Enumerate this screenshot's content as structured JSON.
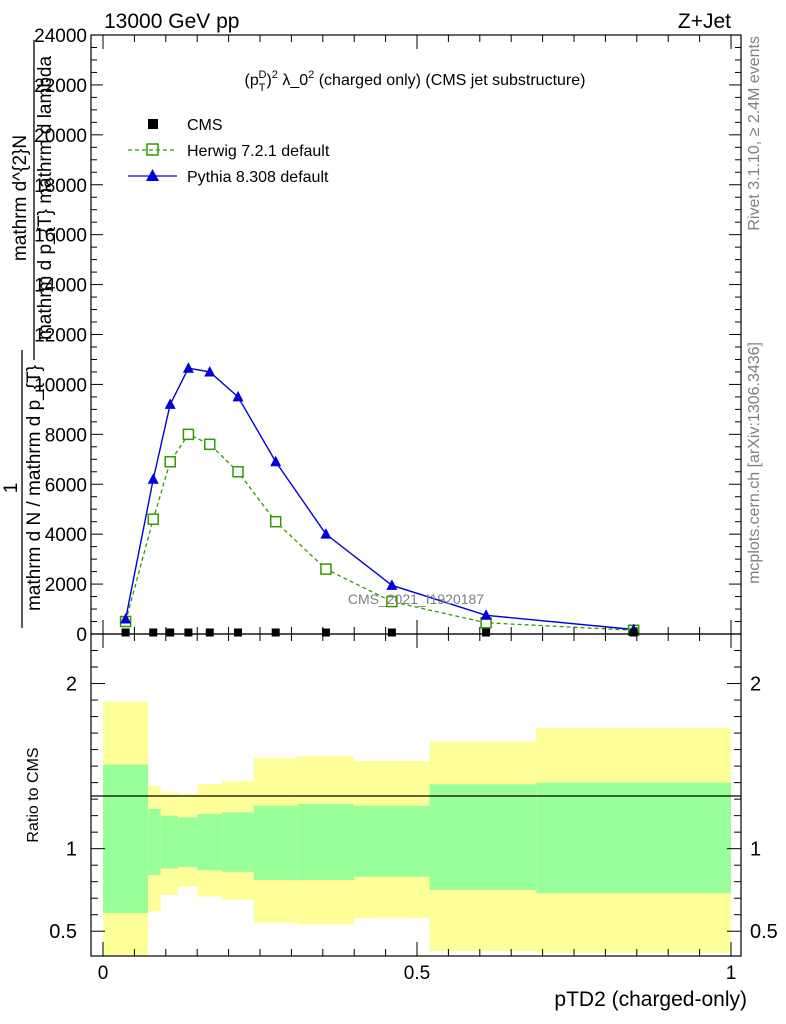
{
  "header": {
    "left": "13000 GeV pp",
    "right": "Z+Jet"
  },
  "side_labels": {
    "rivet": "Rivet 3.1.10, ≥ 2.4M events",
    "mcplots": "mcplots.cern.ch [arXiv:1306.3436]"
  },
  "watermark": "CMS_2021_I1920187",
  "colors": {
    "cms": "#000000",
    "herwig": "#339900",
    "pythia": "#0000dd",
    "band_inner": "#99ff99",
    "band_outer": "#ffff99"
  },
  "chart_data": [
    {
      "type": "line",
      "title_base": "(p",
      "title_sub": "T",
      "title_sup": "D",
      "title_sq": "2",
      "title_mid": " λ_0",
      "title_tail": " (charged only) (CMS jet substructure)",
      "ylabel_lines": [
        "mathrm d^{2}N",
        "mathrm d p_{T} mathrm d lambda",
        "1",
        "mathrm d N / mathrm d p_{T}"
      ],
      "ylim": [
        0,
        24000
      ],
      "yticks": [
        0,
        2000,
        4000,
        6000,
        8000,
        10000,
        12000,
        14000,
        16000,
        18000,
        20000,
        22000,
        24000
      ],
      "ytick_labels": [
        "0",
        "2000",
        "4000",
        "6000",
        "8000",
        "10000",
        "12000",
        "14000",
        "16000",
        "18000",
        "20000",
        "22000",
        "24000"
      ],
      "legend_placement": "top-left",
      "series": [
        {
          "name": "CMS",
          "x": [
            0.036,
            0.08,
            0.107,
            0.136,
            0.17,
            0.215,
            0.275,
            0.355,
            0.46,
            0.61,
            0.845
          ],
          "y": [
            60,
            60,
            60,
            60,
            60,
            60,
            60,
            60,
            60,
            60,
            60
          ]
        },
        {
          "name": "Herwig 7.2.1 default",
          "x": [
            0.036,
            0.08,
            0.107,
            0.136,
            0.17,
            0.215,
            0.275,
            0.355,
            0.46,
            0.61,
            0.845
          ],
          "y": [
            500,
            4600,
            6900,
            8000,
            7600,
            6500,
            4500,
            2600,
            1300,
            450,
            150
          ]
        },
        {
          "name": "Pythia 8.308 default",
          "x": [
            0.036,
            0.08,
            0.107,
            0.136,
            0.17,
            0.215,
            0.275,
            0.355,
            0.46,
            0.61,
            0.845
          ],
          "y": [
            600,
            6200,
            9200,
            10650,
            10500,
            9500,
            6900,
            4000,
            1950,
            750,
            180
          ]
        }
      ]
    },
    {
      "type": "area",
      "ylabel": "Ratio to CMS",
      "xlabel": "pTD2 (charged-only)",
      "xlim": [
        0,
        1
      ],
      "ylim": [
        0.35,
        2.3
      ],
      "xticks": [
        0,
        0.5,
        1
      ],
      "xtick_labels": [
        "0",
        "0.5",
        "1"
      ],
      "yticks": [
        0.5,
        1,
        2
      ],
      "ytick_labels": [
        "0.5",
        "1",
        "2"
      ],
      "bins": [
        {
          "lo": 0.0,
          "hi": 0.072,
          "in_lo": 0.61,
          "in_hi": 1.51,
          "out_lo": 0.35,
          "out_hi": 1.89
        },
        {
          "lo": 0.072,
          "hi": 0.092,
          "in_lo": 0.84,
          "in_hi": 1.24,
          "out_lo": 0.62,
          "out_hi": 1.38
        },
        {
          "lo": 0.092,
          "hi": 0.12,
          "in_lo": 0.88,
          "in_hi": 1.2,
          "out_lo": 0.72,
          "out_hi": 1.34
        },
        {
          "lo": 0.12,
          "hi": 0.15,
          "in_lo": 0.89,
          "in_hi": 1.19,
          "out_lo": 0.77,
          "out_hi": 1.33
        },
        {
          "lo": 0.15,
          "hi": 0.19,
          "in_lo": 0.87,
          "in_hi": 1.21,
          "out_lo": 0.71,
          "out_hi": 1.39
        },
        {
          "lo": 0.19,
          "hi": 0.24,
          "in_lo": 0.86,
          "in_hi": 1.22,
          "out_lo": 0.69,
          "out_hi": 1.41
        },
        {
          "lo": 0.24,
          "hi": 0.31,
          "in_lo": 0.81,
          "in_hi": 1.26,
          "out_lo": 0.55,
          "out_hi": 1.55
        },
        {
          "lo": 0.31,
          "hi": 0.4,
          "in_lo": 0.81,
          "in_hi": 1.27,
          "out_lo": 0.54,
          "out_hi": 1.56
        },
        {
          "lo": 0.4,
          "hi": 0.52,
          "in_lo": 0.83,
          "in_hi": 1.26,
          "out_lo": 0.58,
          "out_hi": 1.53
        },
        {
          "lo": 0.52,
          "hi": 0.69,
          "in_lo": 0.75,
          "in_hi": 1.39,
          "out_lo": 0.38,
          "out_hi": 1.65
        },
        {
          "lo": 0.69,
          "hi": 1.0,
          "in_lo": 0.73,
          "in_hi": 1.4,
          "out_lo": 0.37,
          "out_hi": 1.73
        }
      ]
    }
  ]
}
